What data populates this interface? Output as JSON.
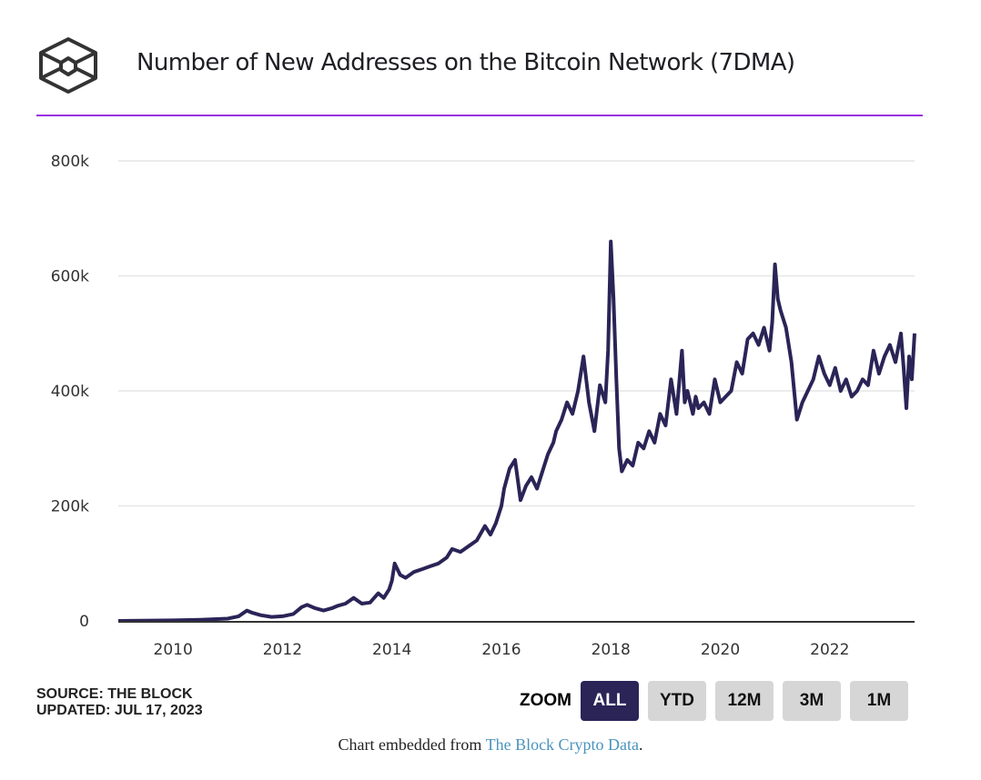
{
  "header": {
    "logo_icon": "the-block-cube-icon",
    "title": "Number of New Addresses on the Bitcoin Network (7DMA)",
    "accent_color": "#9b30e0"
  },
  "footer": {
    "source": "SOURCE: THE BLOCK",
    "updated": "UPDATED: JUL 17, 2023",
    "zoom_label": "ZOOM",
    "zoom_buttons": [
      {
        "label": "ALL",
        "active": true
      },
      {
        "label": "YTD",
        "active": false
      },
      {
        "label": "12M",
        "active": false
      },
      {
        "label": "3M",
        "active": false
      },
      {
        "label": "1M",
        "active": false
      }
    ],
    "embed_prefix": "Chart embedded from ",
    "embed_link": "The Block Crypto Data",
    "embed_suffix": "."
  },
  "chart_data": {
    "type": "line",
    "title": "Number of New Addresses on the Bitcoin Network (7DMA)",
    "xlabel": "",
    "ylabel": "",
    "xlim": [
      2009.0,
      2023.55
    ],
    "ylim": [
      0,
      800000
    ],
    "grid": true,
    "legend": "none",
    "line_color": "#2a2457",
    "x_ticks": [
      2010,
      2012,
      2014,
      2016,
      2018,
      2020,
      2022
    ],
    "x_tick_labels": [
      "2010",
      "2012",
      "2014",
      "2016",
      "2018",
      "2020",
      "2022"
    ],
    "y_ticks": [
      0,
      200000,
      400000,
      600000,
      800000
    ],
    "y_tick_labels": [
      "0",
      "200k",
      "400k",
      "600k",
      "800k"
    ],
    "series": [
      {
        "name": "New Addresses (7DMA)",
        "x": [
          2009.0,
          2010.0,
          2010.5,
          2011.0,
          2011.2,
          2011.35,
          2011.45,
          2011.6,
          2011.8,
          2012.0,
          2012.2,
          2012.35,
          2012.45,
          2012.6,
          2012.75,
          2012.9,
          2013.0,
          2013.15,
          2013.3,
          2013.45,
          2013.6,
          2013.75,
          2013.85,
          2013.95,
          2014.0,
          2014.05,
          2014.15,
          2014.25,
          2014.4,
          2014.55,
          2014.7,
          2014.85,
          2015.0,
          2015.1,
          2015.25,
          2015.4,
          2015.55,
          2015.7,
          2015.8,
          2015.9,
          2016.0,
          2016.05,
          2016.15,
          2016.25,
          2016.35,
          2016.45,
          2016.55,
          2016.65,
          2016.75,
          2016.85,
          2016.95,
          2017.0,
          2017.1,
          2017.2,
          2017.3,
          2017.4,
          2017.5,
          2017.55,
          2017.6,
          2017.7,
          2017.8,
          2017.9,
          2017.95,
          2018.0,
          2018.05,
          2018.1,
          2018.15,
          2018.2,
          2018.3,
          2018.4,
          2018.5,
          2018.6,
          2018.7,
          2018.8,
          2018.9,
          2019.0,
          2019.1,
          2019.2,
          2019.3,
          2019.35,
          2019.4,
          2019.5,
          2019.55,
          2019.6,
          2019.7,
          2019.8,
          2019.9,
          2020.0,
          2020.1,
          2020.2,
          2020.3,
          2020.4,
          2020.5,
          2020.6,
          2020.7,
          2020.8,
          2020.9,
          2020.95,
          2021.0,
          2021.05,
          2021.1,
          2021.2,
          2021.3,
          2021.4,
          2021.5,
          2021.6,
          2021.7,
          2021.8,
          2021.9,
          2022.0,
          2022.1,
          2022.2,
          2022.3,
          2022.4,
          2022.5,
          2022.6,
          2022.7,
          2022.8,
          2022.9,
          2023.0,
          2023.1,
          2023.2,
          2023.3,
          2023.35,
          2023.4,
          2023.45,
          2023.5,
          2023.55
        ],
        "values": [
          0,
          1000,
          2000,
          4000,
          8000,
          18000,
          14000,
          10000,
          7000,
          8000,
          12000,
          24000,
          28000,
          22000,
          18000,
          22000,
          26000,
          30000,
          40000,
          30000,
          32000,
          48000,
          40000,
          55000,
          70000,
          100000,
          80000,
          75000,
          85000,
          90000,
          95000,
          100000,
          110000,
          125000,
          120000,
          130000,
          140000,
          165000,
          150000,
          170000,
          200000,
          230000,
          265000,
          280000,
          210000,
          235000,
          250000,
          230000,
          260000,
          290000,
          310000,
          330000,
          350000,
          380000,
          360000,
          400000,
          460000,
          420000,
          380000,
          330000,
          410000,
          380000,
          470000,
          660000,
          560000,
          420000,
          300000,
          260000,
          280000,
          270000,
          310000,
          300000,
          330000,
          310000,
          360000,
          340000,
          420000,
          360000,
          470000,
          380000,
          400000,
          360000,
          390000,
          370000,
          380000,
          360000,
          420000,
          380000,
          390000,
          400000,
          450000,
          430000,
          490000,
          500000,
          480000,
          510000,
          470000,
          520000,
          620000,
          560000,
          540000,
          510000,
          450000,
          350000,
          380000,
          400000,
          420000,
          460000,
          430000,
          410000,
          440000,
          400000,
          420000,
          390000,
          400000,
          420000,
          410000,
          470000,
          430000,
          460000,
          480000,
          450000,
          500000,
          440000,
          370000,
          460000,
          420000,
          500000
        ]
      }
    ]
  }
}
